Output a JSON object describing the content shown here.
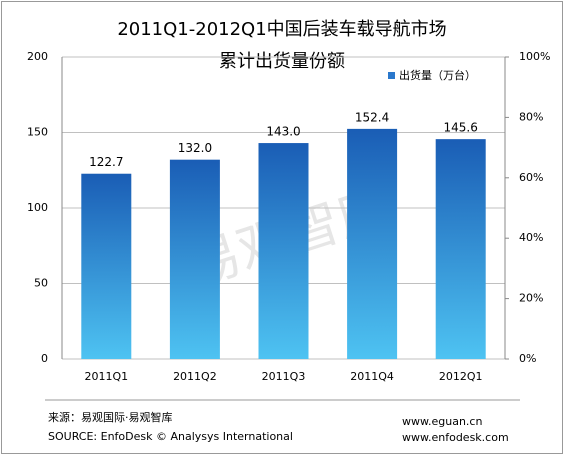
{
  "chart_data": {
    "type": "bar",
    "title": [
      "2011Q1-2012Q1中国后装车载导航市场",
      "累计出货量份额"
    ],
    "categories": [
      "2011Q1",
      "2011Q2",
      "2011Q3",
      "2011Q4",
      "2012Q1"
    ],
    "series": [
      {
        "name": "出货量（万台）",
        "color": "#2a78cc",
        "values": [
          122.7,
          132.0,
          143.0,
          152.4,
          145.6
        ],
        "value_labels": [
          "122.7",
          "132.0",
          "143.0",
          "152.4",
          "145.6"
        ]
      }
    ],
    "ylim": [
      0,
      200
    ],
    "yticks": [
      0,
      50,
      100,
      150,
      200
    ],
    "y2lim": [
      0,
      100
    ],
    "y2ticks": [
      {
        "value": 0,
        "label": "0%"
      },
      {
        "value": 20,
        "label": "20%"
      },
      {
        "value": 40,
        "label": "40%"
      },
      {
        "value": 60,
        "label": "60%"
      },
      {
        "value": 80,
        "label": "80%"
      },
      {
        "value": 100,
        "label": "100%"
      }
    ],
    "grid": true,
    "legend": "upper right",
    "watermark": "易观智库",
    "source": [
      "来源：易观国际·易观智库",
      "SOURCE:  EnfoDesk © Analysys International"
    ],
    "websites": [
      "www.eguan.cn",
      "www.enfodesk.com"
    ]
  }
}
